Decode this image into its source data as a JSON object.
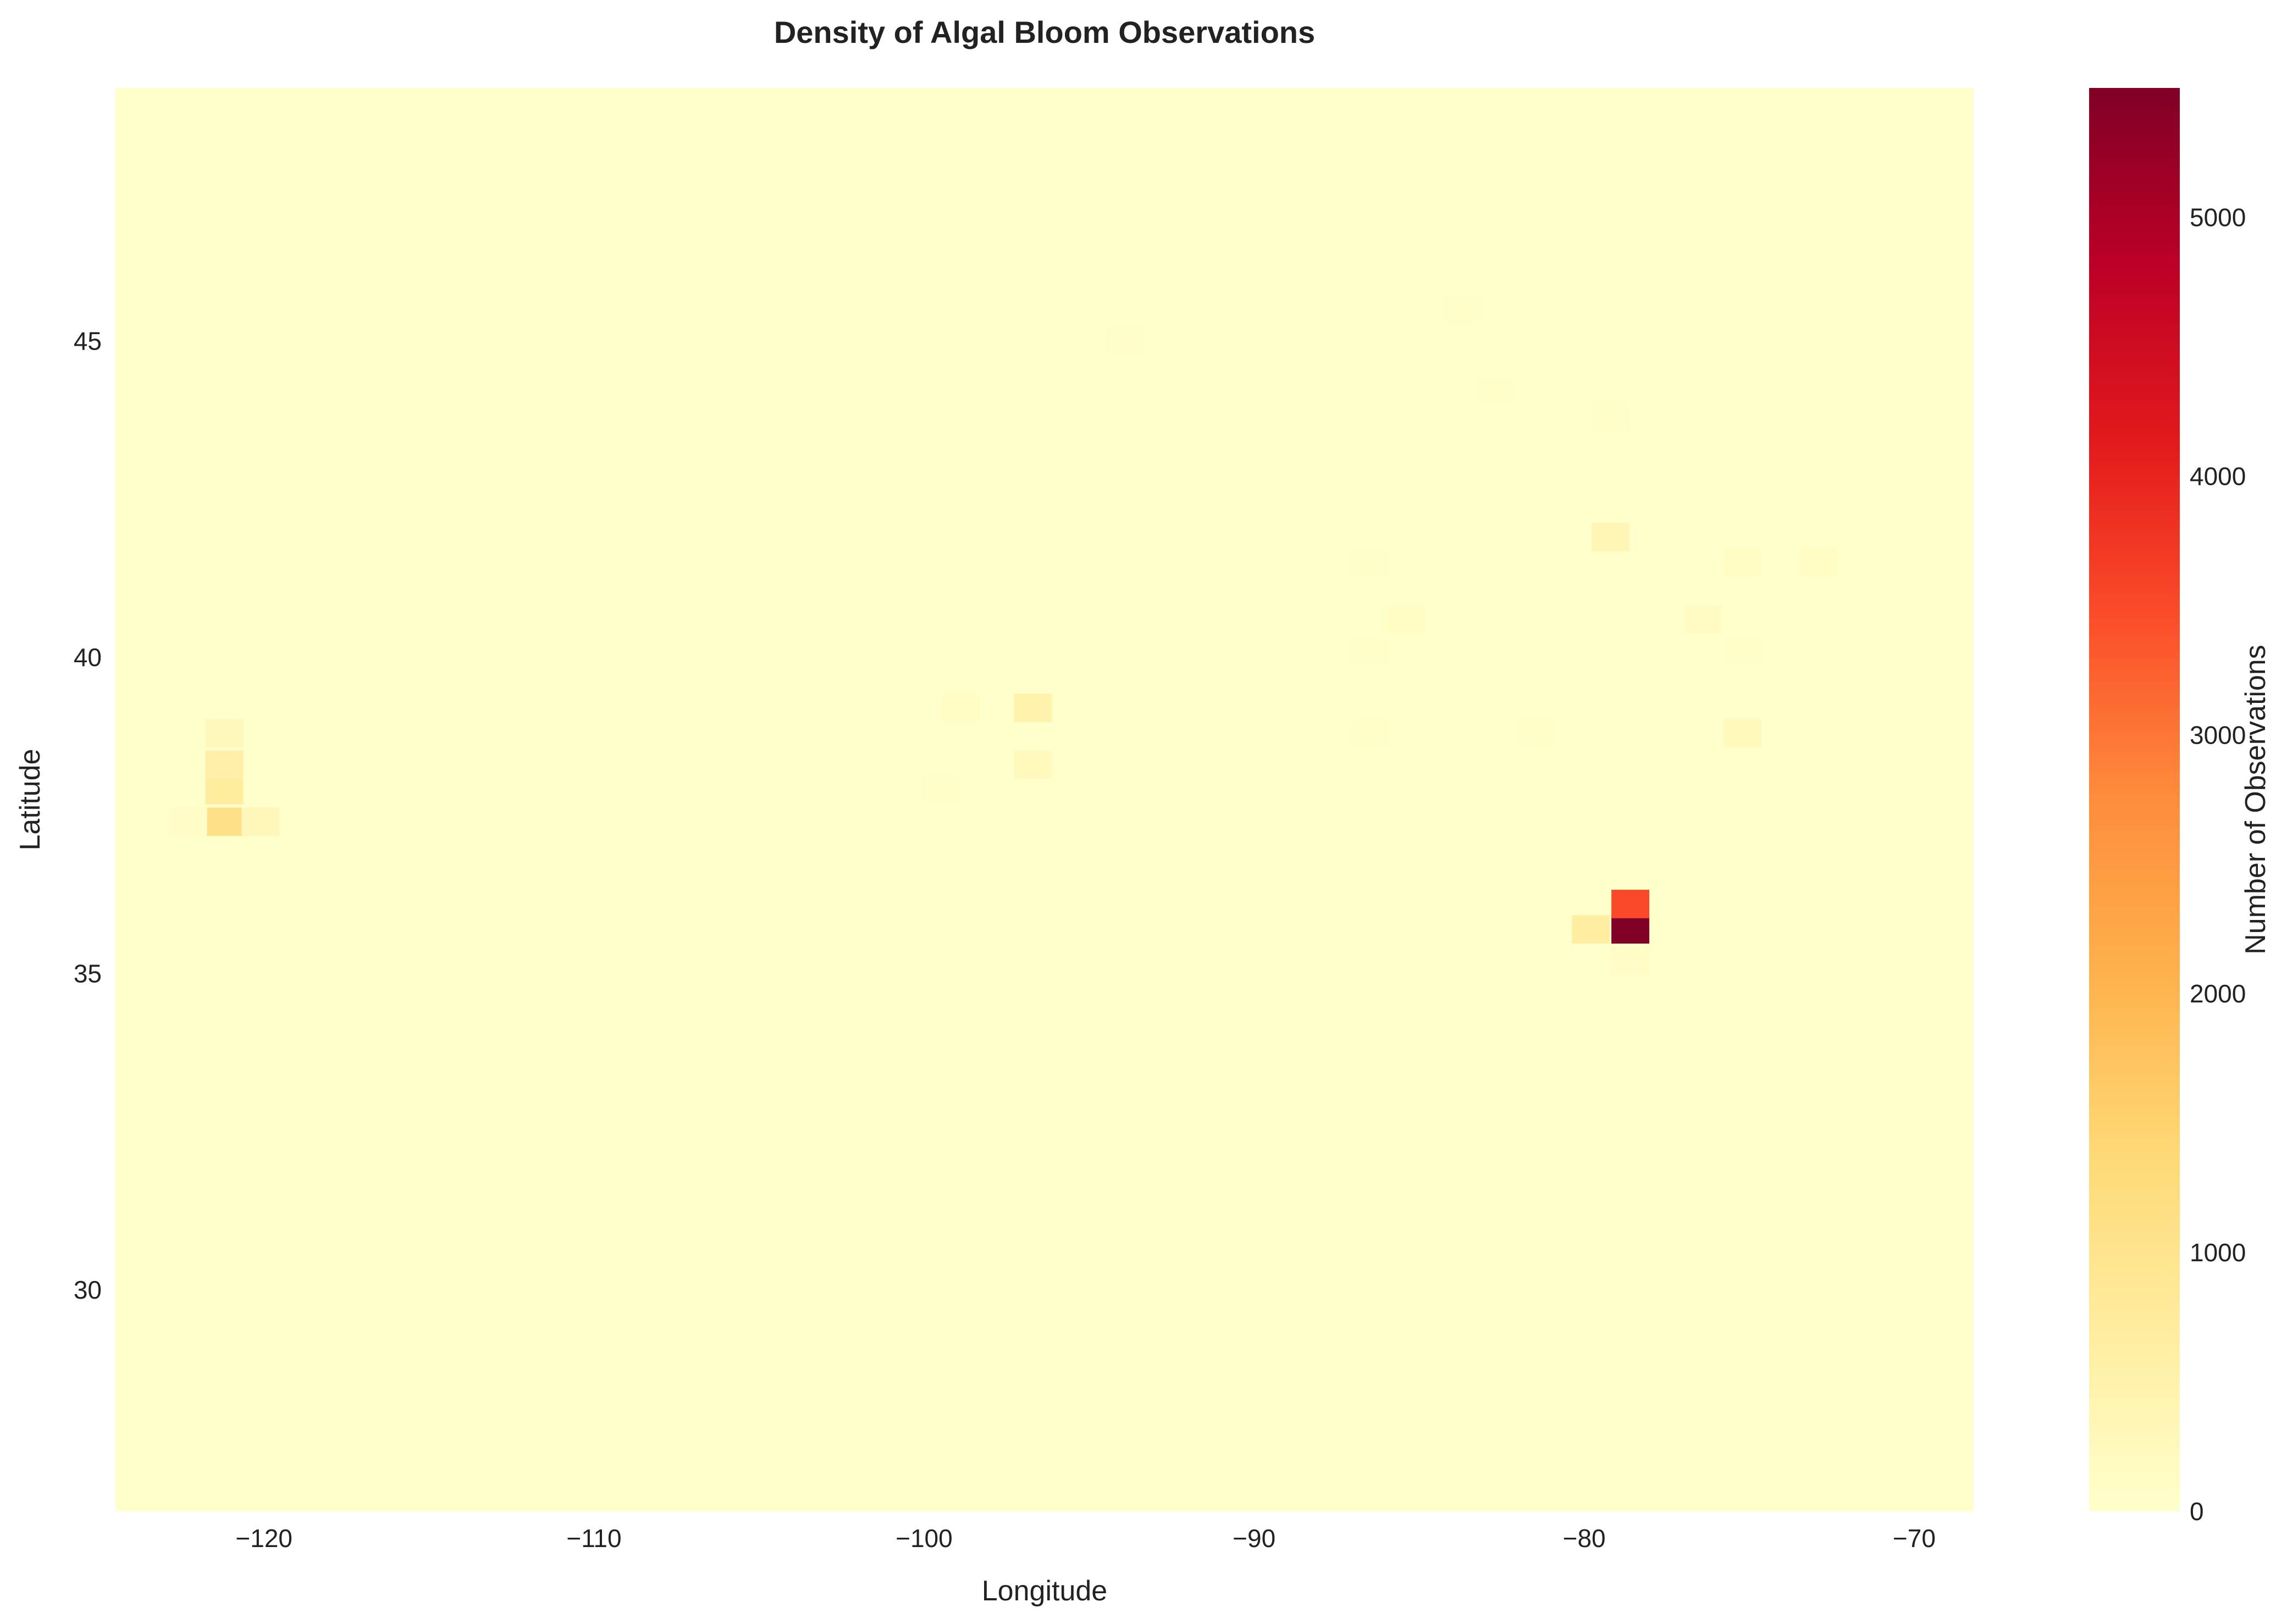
{
  "chart_data": {
    "type": "heatmap",
    "title": "Density of Algal Bloom Observations",
    "xlabel": "Longitude",
    "ylabel": "Latitude",
    "xlim": [
      -124.5,
      -68.2
    ],
    "ylim": [
      26.5,
      49.0
    ],
    "x_ticks": [
      -120,
      -110,
      -100,
      -90,
      -80,
      -70
    ],
    "y_ticks": [
      30,
      35,
      40,
      45
    ],
    "colorbar": {
      "label": "Number of Observations",
      "min": 0,
      "max": 5500,
      "ticks": [
        0,
        1000,
        2000,
        3000,
        4000,
        5000
      ],
      "colormap": "YlOrRd"
    },
    "grid": false,
    "bin_size_deg": [
      1.15,
      0.45
    ],
    "cells": [
      {
        "lon": -121.2,
        "lat": 37.4,
        "count": 1100
      },
      {
        "lon": -121.2,
        "lat": 37.9,
        "count": 700
      },
      {
        "lon": -121.2,
        "lat": 38.3,
        "count": 600
      },
      {
        "lon": -121.2,
        "lat": 38.8,
        "count": 250
      },
      {
        "lon": -120.1,
        "lat": 37.4,
        "count": 300
      },
      {
        "lon": -122.3,
        "lat": 37.4,
        "count": 80
      },
      {
        "lon": -96.7,
        "lat": 39.2,
        "count": 500
      },
      {
        "lon": -96.7,
        "lat": 38.3,
        "count": 220
      },
      {
        "lon": -98.9,
        "lat": 39.2,
        "count": 120
      },
      {
        "lon": -99.5,
        "lat": 37.9,
        "count": 40
      },
      {
        "lon": -85.4,
        "lat": 40.6,
        "count": 120
      },
      {
        "lon": -86.5,
        "lat": 41.5,
        "count": 60
      },
      {
        "lon": -86.5,
        "lat": 40.1,
        "count": 40
      },
      {
        "lon": -86.5,
        "lat": 38.8,
        "count": 40
      },
      {
        "lon": -79.2,
        "lat": 41.9,
        "count": 350
      },
      {
        "lon": -79.2,
        "lat": 43.8,
        "count": 60
      },
      {
        "lon": -82.6,
        "lat": 44.2,
        "count": 50
      },
      {
        "lon": -83.7,
        "lat": 45.5,
        "count": 40
      },
      {
        "lon": -93.9,
        "lat": 45.0,
        "count": 30
      },
      {
        "lon": -75.2,
        "lat": 41.5,
        "count": 130
      },
      {
        "lon": -72.9,
        "lat": 41.5,
        "count": 120
      },
      {
        "lon": -76.4,
        "lat": 40.6,
        "count": 150
      },
      {
        "lon": -75.2,
        "lat": 40.1,
        "count": 60
      },
      {
        "lon": -75.2,
        "lat": 38.8,
        "count": 220
      },
      {
        "lon": -81.4,
        "lat": 38.8,
        "count": 40
      },
      {
        "lon": -78.6,
        "lat": 35.7,
        "count": 5500
      },
      {
        "lon": -78.6,
        "lat": 36.1,
        "count": 3500
      },
      {
        "lon": -79.8,
        "lat": 35.7,
        "count": 650
      },
      {
        "lon": -78.6,
        "lat": 35.2,
        "count": 100
      }
    ]
  }
}
